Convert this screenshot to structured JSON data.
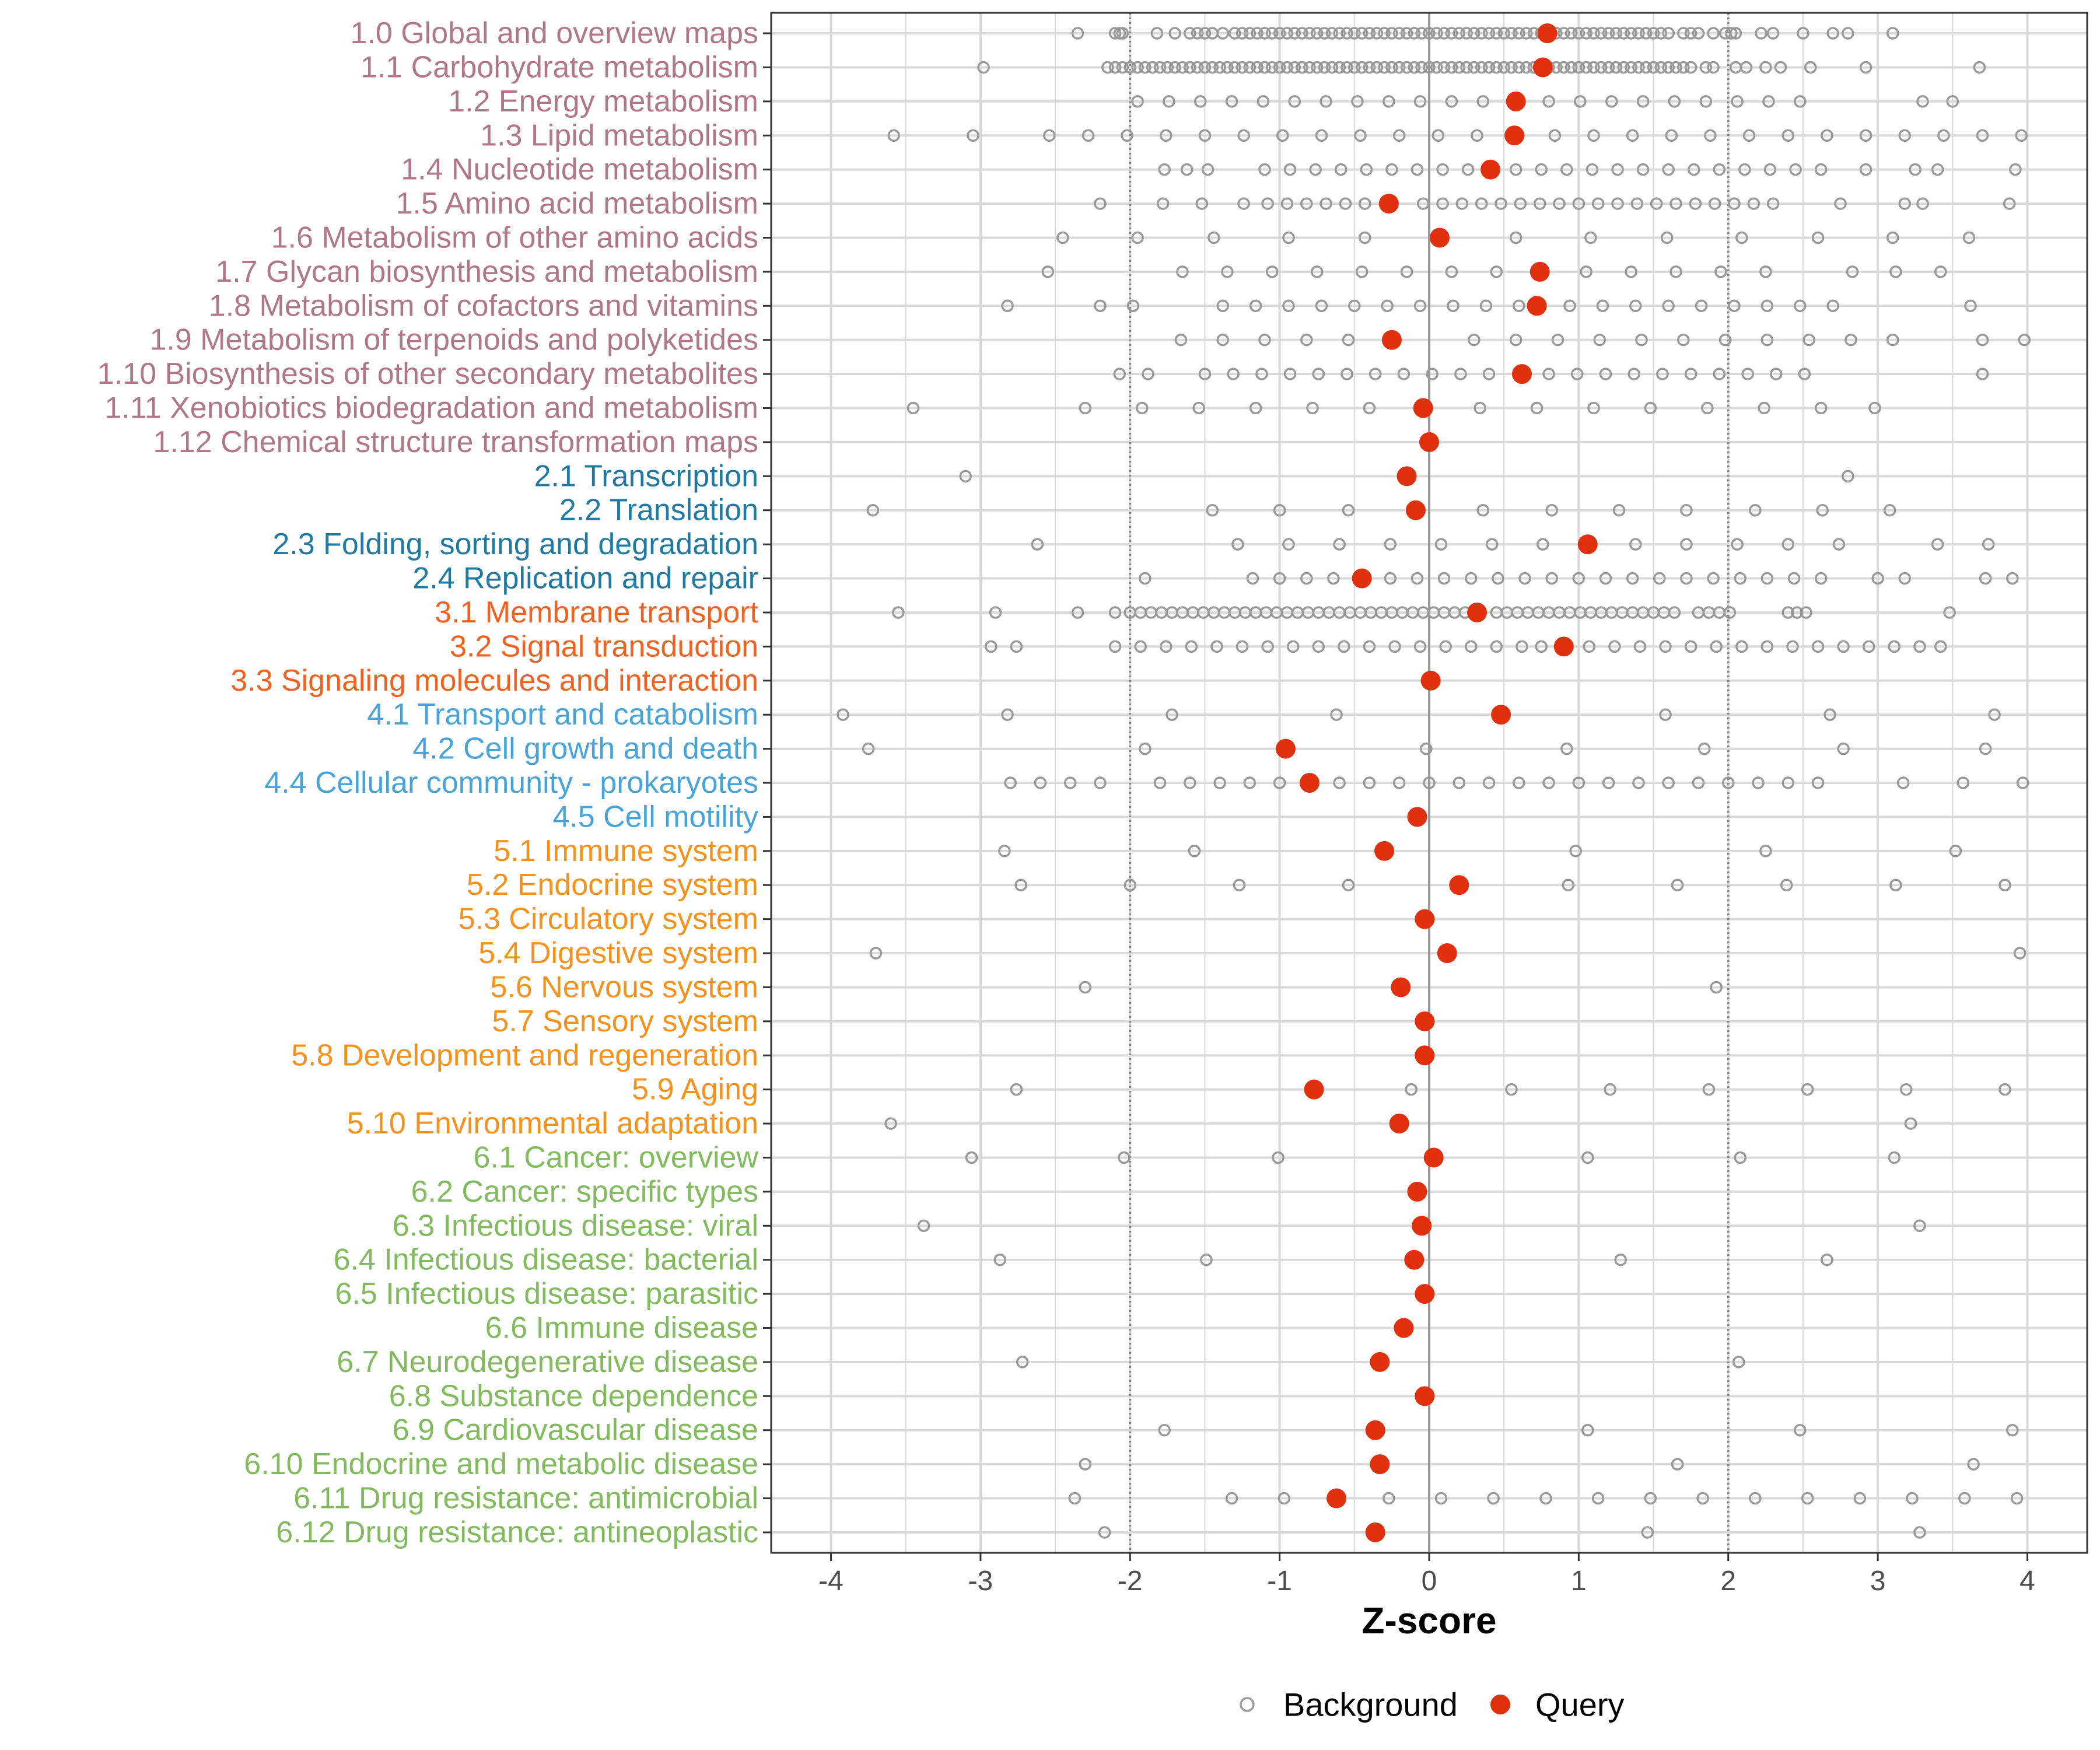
{
  "chart_data": {
    "type": "scatter",
    "title": "",
    "xlabel": "Z-score",
    "ylabel": "",
    "xlim": [
      -4.4,
      4.4
    ],
    "x_ticks": [
      -4,
      -3,
      -2,
      -1,
      0,
      1,
      2,
      3,
      4
    ],
    "x_tick_labels": [
      "-4",
      "-3",
      "-2",
      "-1",
      "0",
      "1",
      "2",
      "3",
      "4"
    ],
    "reference_lines": {
      "solid": [
        0
      ],
      "dotted": [
        -2,
        2
      ]
    },
    "legend": {
      "position": "bottom",
      "entries": [
        {
          "name": "Background",
          "style": "open-circle",
          "color": "#999999"
        },
        {
          "name": "Query",
          "style": "filled-circle",
          "color": "#e0300e"
        }
      ]
    },
    "group_colors": {
      "1": "#b07788",
      "2": "#1f79a2",
      "3": "#f2611f",
      "4": "#47a4db",
      "5": "#f6911b",
      "6": "#82ba5e"
    },
    "categories": [
      {
        "label": "1.0 Global and overview maps",
        "group": "1",
        "query": 0.79,
        "background": [
          -2.35,
          -2.1,
          -2.07,
          -2.05,
          -1.82,
          -1.7,
          -1.6,
          -1.55,
          -1.5,
          -1.45,
          -1.38,
          -1.3,
          -1.25,
          -1.2,
          -1.15,
          -1.1,
          -1.05,
          -1.0,
          -0.95,
          -0.9,
          -0.85,
          -0.8,
          -0.75,
          -0.7,
          -0.65,
          -0.6,
          -0.55,
          -0.5,
          -0.45,
          -0.4,
          -0.35,
          -0.3,
          -0.25,
          -0.2,
          -0.15,
          -0.1,
          -0.05,
          0.0,
          0.05,
          0.1,
          0.15,
          0.2,
          0.25,
          0.3,
          0.35,
          0.4,
          0.45,
          0.5,
          0.55,
          0.6,
          0.65,
          0.7,
          0.75,
          0.8,
          0.85,
          0.9,
          0.95,
          1.0,
          1.05,
          1.1,
          1.15,
          1.2,
          1.25,
          1.3,
          1.35,
          1.4,
          1.45,
          1.5,
          1.55,
          1.6,
          1.7,
          1.75,
          1.8,
          1.9,
          1.98,
          2.02,
          2.05,
          2.22,
          2.3,
          2.5,
          2.7,
          2.8,
          3.1
        ]
      },
      {
        "label": "1.1 Carbohydrate metabolism",
        "group": "1",
        "query": 0.76,
        "background": [
          -2.98,
          -2.15,
          -2.1,
          -2.05,
          -2.0,
          -1.95,
          -1.9,
          -1.85,
          -1.8,
          -1.75,
          -1.7,
          -1.65,
          -1.6,
          -1.55,
          -1.5,
          -1.45,
          -1.4,
          -1.35,
          -1.3,
          -1.25,
          -1.2,
          -1.15,
          -1.1,
          -1.05,
          -1.0,
          -0.95,
          -0.9,
          -0.85,
          -0.8,
          -0.75,
          -0.7,
          -0.65,
          -0.6,
          -0.55,
          -0.5,
          -0.45,
          -0.4,
          -0.35,
          -0.3,
          -0.25,
          -0.2,
          -0.15,
          -0.1,
          -0.05,
          0.0,
          0.05,
          0.1,
          0.15,
          0.2,
          0.25,
          0.3,
          0.35,
          0.4,
          0.45,
          0.5,
          0.55,
          0.6,
          0.65,
          0.7,
          0.75,
          0.8,
          0.85,
          0.9,
          0.95,
          1.0,
          1.05,
          1.1,
          1.15,
          1.2,
          1.25,
          1.3,
          1.35,
          1.4,
          1.45,
          1.5,
          1.55,
          1.6,
          1.65,
          1.7,
          1.75,
          1.85,
          1.9,
          2.05,
          2.12,
          2.25,
          2.35,
          2.55,
          2.92,
          3.68
        ]
      },
      {
        "label": "1.2 Energy metabolism",
        "group": "1",
        "query": 0.58,
        "background": [
          -1.95,
          -1.74,
          -1.53,
          -1.32,
          -1.11,
          -0.9,
          -0.69,
          -0.48,
          -0.27,
          -0.06,
          0.15,
          0.36,
          0.8,
          1.01,
          1.22,
          1.43,
          1.64,
          1.85,
          2.06,
          2.27,
          2.48,
          3.3,
          3.5
        ]
      },
      {
        "label": "1.3 Lipid metabolism",
        "group": "1",
        "query": 0.57,
        "background": [
          -3.58,
          -3.05,
          -2.54,
          -2.28,
          -2.02,
          -1.76,
          -1.5,
          -1.24,
          -0.98,
          -0.72,
          -0.46,
          -0.2,
          0.06,
          0.32,
          0.84,
          1.1,
          1.36,
          1.62,
          1.88,
          2.14,
          2.4,
          2.66,
          2.92,
          3.18,
          3.44,
          3.7,
          3.96
        ]
      },
      {
        "label": "1.4 Nucleotide metabolism",
        "group": "1",
        "query": 0.41,
        "background": [
          -1.77,
          -1.62,
          -1.48,
          -1.1,
          -0.93,
          -0.76,
          -0.59,
          -0.42,
          -0.25,
          -0.08,
          0.09,
          0.26,
          0.58,
          0.75,
          0.92,
          1.09,
          1.26,
          1.43,
          1.6,
          1.77,
          1.94,
          2.11,
          2.28,
          2.45,
          2.62,
          2.92,
          3.25,
          3.4,
          3.92
        ]
      },
      {
        "label": "1.5 Amino acid metabolism",
        "group": "1",
        "query": -0.27,
        "background": [
          -2.2,
          -1.78,
          -1.52,
          -1.24,
          -1.08,
          -0.95,
          -0.82,
          -0.69,
          -0.56,
          -0.43,
          -0.04,
          0.09,
          0.22,
          0.35,
          0.48,
          0.61,
          0.74,
          0.87,
          1.0,
          1.13,
          1.26,
          1.39,
          1.52,
          1.65,
          1.78,
          1.91,
          2.04,
          2.17,
          2.3,
          2.75,
          3.18,
          3.3,
          3.88
        ]
      },
      {
        "label": "1.6 Metabolism of other amino acids",
        "group": "1",
        "query": 0.07,
        "background": [
          -2.45,
          -1.95,
          -1.44,
          -0.94,
          -0.43,
          0.58,
          1.08,
          1.59,
          2.09,
          2.6,
          3.1,
          3.61
        ]
      },
      {
        "label": "1.7 Glycan biosynthesis and metabolism",
        "group": "1",
        "query": 0.74,
        "background": [
          -2.55,
          -1.65,
          -1.35,
          -1.05,
          -0.75,
          -0.45,
          -0.15,
          0.15,
          0.45,
          1.05,
          1.35,
          1.65,
          1.95,
          2.25,
          2.83,
          3.12,
          3.42
        ]
      },
      {
        "label": "1.8 Metabolism of cofactors and vitamins",
        "group": "1",
        "query": 0.72,
        "background": [
          -2.82,
          -2.2,
          -1.98,
          -1.38,
          -1.16,
          -0.94,
          -0.72,
          -0.5,
          -0.28,
          -0.06,
          0.16,
          0.38,
          0.6,
          0.94,
          1.16,
          1.38,
          1.6,
          1.82,
          2.04,
          2.26,
          2.48,
          2.7,
          3.62
        ]
      },
      {
        "label": "1.9 Metabolism of terpenoids and polyketides",
        "group": "1",
        "query": -0.25,
        "background": [
          -1.66,
          -1.38,
          -1.1,
          -0.82,
          -0.54,
          0.3,
          0.58,
          0.86,
          1.14,
          1.42,
          1.7,
          1.98,
          2.26,
          2.54,
          2.82,
          3.1,
          3.7,
          3.98
        ]
      },
      {
        "label": "1.10 Biosynthesis of other secondary metabolites",
        "group": "1",
        "query": 0.62,
        "background": [
          -2.07,
          -1.88,
          -1.5,
          -1.31,
          -1.12,
          -0.93,
          -0.74,
          -0.55,
          -0.36,
          -0.17,
          0.02,
          0.21,
          0.4,
          0.8,
          0.99,
          1.18,
          1.37,
          1.56,
          1.75,
          1.94,
          2.13,
          2.32,
          2.51,
          3.7
        ]
      },
      {
        "label": "1.11 Xenobiotics biodegradation and metabolism",
        "group": "1",
        "query": -0.04,
        "background": [
          -3.45,
          -2.3,
          -1.92,
          -1.54,
          -1.16,
          -0.78,
          -0.4,
          0.34,
          0.72,
          1.1,
          1.48,
          1.86,
          2.24,
          2.62,
          2.98
        ]
      },
      {
        "label": "1.12 Chemical structure transformation maps",
        "group": "1",
        "query": 0.0,
        "background": []
      },
      {
        "label": "2.1 Transcription",
        "group": "2",
        "query": -0.15,
        "background": [
          -3.1,
          2.8
        ]
      },
      {
        "label": "2.2 Translation",
        "group": "2",
        "query": -0.09,
        "background": [
          -3.72,
          -1.45,
          -1.0,
          -0.54,
          0.36,
          0.82,
          1.27,
          1.72,
          2.18,
          2.63,
          3.08
        ]
      },
      {
        "label": "2.3 Folding, sorting and degradation",
        "group": "2",
        "query": 1.06,
        "background": [
          -2.62,
          -1.28,
          -0.94,
          -0.6,
          -0.26,
          0.08,
          0.42,
          0.76,
          1.38,
          1.72,
          2.06,
          2.4,
          2.74,
          3.4,
          3.74
        ]
      },
      {
        "label": "2.4 Replication and repair",
        "group": "2",
        "query": -0.45,
        "background": [
          -1.9,
          -1.18,
          -1.0,
          -0.82,
          -0.64,
          -0.26,
          -0.08,
          0.1,
          0.28,
          0.46,
          0.64,
          0.82,
          1.0,
          1.18,
          1.36,
          1.54,
          1.72,
          1.9,
          2.08,
          2.26,
          2.44,
          2.62,
          3.0,
          3.18,
          3.72,
          3.9
        ]
      },
      {
        "label": "3.1 Membrane transport",
        "group": "3",
        "query": 0.32,
        "background": [
          -3.55,
          -2.9,
          -2.35,
          -2.1,
          -2.0,
          -1.93,
          -1.86,
          -1.79,
          -1.72,
          -1.65,
          -1.58,
          -1.51,
          -1.44,
          -1.37,
          -1.3,
          -1.23,
          -1.16,
          -1.09,
          -1.02,
          -0.95,
          -0.88,
          -0.81,
          -0.74,
          -0.67,
          -0.6,
          -0.53,
          -0.46,
          -0.39,
          -0.32,
          -0.25,
          -0.18,
          -0.11,
          -0.04,
          0.03,
          0.1,
          0.17,
          0.24,
          0.45,
          0.52,
          0.59,
          0.66,
          0.73,
          0.8,
          0.87,
          0.94,
          1.01,
          1.08,
          1.15,
          1.22,
          1.29,
          1.36,
          1.43,
          1.5,
          1.57,
          1.64,
          1.8,
          1.87,
          1.94,
          2.01,
          2.4,
          2.46,
          2.52,
          3.48
        ]
      },
      {
        "label": "3.2 Signal transduction",
        "group": "3",
        "query": 0.9,
        "background": [
          -2.93,
          -2.76,
          -2.1,
          -1.93,
          -1.76,
          -1.59,
          -1.42,
          -1.25,
          -1.08,
          -0.91,
          -0.74,
          -0.57,
          -0.4,
          -0.23,
          -0.06,
          0.11,
          0.28,
          0.45,
          0.62,
          0.75,
          1.07,
          1.24,
          1.41,
          1.58,
          1.75,
          1.92,
          2.09,
          2.26,
          2.43,
          2.6,
          2.77,
          2.94,
          3.11,
          3.28,
          3.42
        ]
      },
      {
        "label": "3.3 Signaling molecules and interaction",
        "group": "3",
        "query": 0.01,
        "background": []
      },
      {
        "label": "4.1 Transport and catabolism",
        "group": "4",
        "query": 0.48,
        "background": [
          -3.92,
          -2.82,
          -1.72,
          -0.62,
          1.58,
          2.68,
          3.78
        ]
      },
      {
        "label": "4.2 Cell growth and death",
        "group": "4",
        "query": -0.96,
        "background": [
          -3.75,
          -1.9,
          -0.02,
          0.92,
          1.84,
          2.77,
          3.72
        ]
      },
      {
        "label": "4.4 Cellular community - prokaryotes",
        "group": "4",
        "query": -0.8,
        "background": [
          -2.8,
          -2.6,
          -2.4,
          -2.2,
          -1.8,
          -1.6,
          -1.4,
          -1.2,
          -1.0,
          -0.6,
          -0.4,
          -0.2,
          0.0,
          0.2,
          0.4,
          0.6,
          0.8,
          1.0,
          1.2,
          1.4,
          1.6,
          1.8,
          2.0,
          2.2,
          2.4,
          2.6,
          3.17,
          3.57,
          3.97
        ]
      },
      {
        "label": "4.5 Cell motility",
        "group": "4",
        "query": -0.08,
        "background": []
      },
      {
        "label": "5.1 Immune system",
        "group": "5",
        "query": -0.3,
        "background": [
          -2.84,
          -1.57,
          0.98,
          2.25,
          3.52
        ]
      },
      {
        "label": "5.2 Endocrine system",
        "group": "5",
        "query": 0.2,
        "background": [
          -2.73,
          -2.0,
          -1.27,
          -0.54,
          0.93,
          1.66,
          2.39,
          3.12,
          3.85
        ]
      },
      {
        "label": "5.3 Circulatory system",
        "group": "5",
        "query": -0.03,
        "background": []
      },
      {
        "label": "5.4 Digestive system",
        "group": "5",
        "query": 0.12,
        "background": [
          -3.7,
          3.95
        ]
      },
      {
        "label": "5.6 Nervous system",
        "group": "5",
        "query": -0.19,
        "background": [
          -2.3,
          1.92
        ]
      },
      {
        "label": "5.7 Sensory system",
        "group": "5",
        "query": -0.03,
        "background": []
      },
      {
        "label": "5.8 Development and regeneration",
        "group": "5",
        "query": -0.03,
        "background": []
      },
      {
        "label": "5.9 Aging",
        "group": "5",
        "query": -0.77,
        "background": [
          -2.76,
          -0.12,
          0.55,
          1.21,
          1.87,
          2.53,
          3.19,
          3.85
        ]
      },
      {
        "label": "5.10 Environmental adaptation",
        "group": "5",
        "query": -0.2,
        "background": [
          -3.6,
          3.22
        ]
      },
      {
        "label": "6.1 Cancer: overview",
        "group": "6",
        "query": 0.03,
        "background": [
          -3.06,
          -2.04,
          -1.01,
          1.06,
          2.08,
          3.11
        ]
      },
      {
        "label": "6.2 Cancer: specific types",
        "group": "6",
        "query": -0.08,
        "background": []
      },
      {
        "label": "6.3 Infectious disease: viral",
        "group": "6",
        "query": -0.05,
        "background": [
          -3.38,
          3.28
        ]
      },
      {
        "label": "6.4 Infectious disease: bacterial",
        "group": "6",
        "query": -0.1,
        "background": [
          -2.87,
          -1.49,
          1.28,
          2.66
        ]
      },
      {
        "label": "6.5 Infectious disease: parasitic",
        "group": "6",
        "query": -0.03,
        "background": []
      },
      {
        "label": "6.6 Immune disease",
        "group": "6",
        "query": -0.17,
        "background": []
      },
      {
        "label": "6.7 Neurodegenerative disease",
        "group": "6",
        "query": -0.33,
        "background": [
          -2.72,
          2.07
        ]
      },
      {
        "label": "6.8 Substance dependence",
        "group": "6",
        "query": -0.03,
        "background": []
      },
      {
        "label": "6.9 Cardiovascular disease",
        "group": "6",
        "query": -0.36,
        "background": [
          -1.77,
          1.06,
          2.48,
          3.9
        ]
      },
      {
        "label": "6.10 Endocrine and metabolic disease",
        "group": "6",
        "query": -0.33,
        "background": [
          -2.3,
          1.66,
          3.64
        ]
      },
      {
        "label": "6.11 Drug resistance: antimicrobial",
        "group": "6",
        "query": -0.62,
        "background": [
          -2.37,
          -1.32,
          -0.97,
          -0.27,
          0.08,
          0.43,
          0.78,
          1.13,
          1.48,
          1.83,
          2.18,
          2.53,
          2.88,
          3.23,
          3.58,
          3.93
        ]
      },
      {
        "label": "6.12 Drug resistance: antineoplastic",
        "group": "6",
        "query": -0.36,
        "background": [
          -2.17,
          1.46,
          3.28
        ]
      }
    ]
  }
}
